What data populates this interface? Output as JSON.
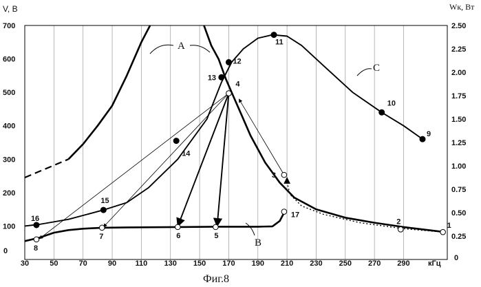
{
  "chart_data": {
    "type": "line",
    "caption": "Фиг.8",
    "left_axis_title": "V, В",
    "right_axis_title": "Wк, Вт",
    "x_unit": "кГц",
    "xlim": [
      30,
      320
    ],
    "ylim_left": [
      0,
      700
    ],
    "ylim_right": [
      0,
      2.5
    ],
    "x_ticks": [
      "30",
      "50",
      "70",
      "90",
      "110",
      "130",
      "150",
      "170",
      "190",
      "210",
      "230",
      "250",
      "270",
      "290"
    ],
    "y_left_ticks": [
      "100",
      "200",
      "300",
      "400",
      "500",
      "600",
      "700"
    ],
    "y_left_zero": "0",
    "y_right_ticks": [
      "0.25",
      "0.50",
      "0.75",
      "1.00",
      "1.25",
      "1.50",
      "1.75",
      "2.00",
      "2.25",
      "2.50"
    ],
    "y_right_zero": "0",
    "grid_x": [
      50,
      70,
      90,
      110,
      130,
      150,
      170,
      190,
      210,
      230,
      250,
      270,
      290
    ],
    "curve_labels": {
      "A": "A",
      "B": "B",
      "C": "C"
    },
    "series": [
      {
        "name": "A",
        "style": "thick",
        "values": [
          [
            60,
            300
          ],
          [
            70,
            345
          ],
          [
            80,
            400
          ],
          [
            90,
            460
          ],
          [
            100,
            550
          ],
          [
            110,
            650
          ],
          [
            116,
            700
          ]
        ],
        "dashed_extension": [
          [
            30,
            245
          ],
          [
            60,
            300
          ]
        ]
      },
      {
        "name": "A",
        "style": "thick",
        "values": [
          [
            153,
            700
          ],
          [
            158,
            640
          ],
          [
            163,
            600
          ],
          [
            168,
            540
          ],
          [
            172,
            500
          ],
          [
            178,
            440
          ],
          [
            185,
            370
          ],
          [
            195,
            290
          ],
          [
            205,
            230
          ],
          [
            215,
            185
          ],
          [
            230,
            150
          ],
          [
            250,
            125
          ],
          [
            270,
            110
          ],
          [
            290,
            97
          ],
          [
            318,
            82
          ]
        ]
      },
      {
        "name": "B",
        "style": "thick",
        "values": [
          [
            30,
            55
          ],
          [
            40,
            65
          ],
          [
            50,
            80
          ],
          [
            60,
            88
          ],
          [
            70,
            92
          ],
          [
            83,
            95
          ],
          [
            100,
            96
          ],
          [
            135,
            97
          ],
          [
            160,
            98
          ],
          [
            190,
            98
          ],
          [
            200,
            99
          ],
          [
            205,
            115
          ],
          [
            208,
            140
          ]
        ]
      },
      {
        "name": "C",
        "style": "medium",
        "values": [
          [
            30,
            100
          ],
          [
            40,
            105
          ],
          [
            60,
            120
          ],
          [
            84,
            148
          ],
          [
            100,
            170
          ],
          [
            115,
            215
          ],
          [
            135,
            300
          ],
          [
            155,
            420
          ],
          [
            165,
            530
          ],
          [
            172,
            590
          ],
          [
            180,
            630
          ],
          [
            190,
            662
          ],
          [
            200,
            672
          ],
          [
            210,
            668
          ],
          [
            220,
            640
          ],
          [
            235,
            580
          ],
          [
            255,
            500
          ],
          [
            275,
            440
          ],
          [
            290,
            400
          ],
          [
            303,
            360
          ]
        ]
      }
    ],
    "points": [
      {
        "label": "1",
        "x": 317,
        "y": 82,
        "filled": false
      },
      {
        "label": "2",
        "x": 288,
        "y": 90,
        "filled": false
      },
      {
        "label": "3",
        "x": 208,
        "y": 253,
        "filled": false
      },
      {
        "label": "4",
        "x": 170,
        "y": 497,
        "filled": false
      },
      {
        "label": "5",
        "x": 161,
        "y": 97,
        "filled": false
      },
      {
        "label": "6",
        "x": 135,
        "y": 97,
        "filled": false
      },
      {
        "label": "7",
        "x": 83,
        "y": 95,
        "filled": false
      },
      {
        "label": "8",
        "x": 38,
        "y": 60,
        "filled": false
      },
      {
        "label": "9",
        "x": 303,
        "y": 360,
        "filled": true
      },
      {
        "label": "10",
        "x": 275,
        "y": 440,
        "filled": true
      },
      {
        "label": "11",
        "x": 201,
        "y": 672,
        "filled": true
      },
      {
        "label": "12",
        "x": 170,
        "y": 590,
        "filled": true
      },
      {
        "label": "13",
        "x": 165,
        "y": 545,
        "filled": true
      },
      {
        "label": "14",
        "x": 134,
        "y": 355,
        "filled": true
      },
      {
        "label": "15",
        "x": 84,
        "y": 148,
        "filled": true
      },
      {
        "label": "16",
        "x": 38,
        "y": 103,
        "filled": true
      },
      {
        "label": "17",
        "x": 208,
        "y": 143,
        "filled": false
      }
    ],
    "arrows": [
      {
        "from": [
          170,
          497
        ],
        "to": [
          135,
          99
        ],
        "weight": "thick"
      },
      {
        "from": [
          170,
          497
        ],
        "to": [
          162,
          99
        ],
        "weight": "thick"
      },
      {
        "from": [
          170,
          497
        ],
        "to": [
          84,
          97
        ],
        "weight": "thin"
      },
      {
        "from": [
          170,
          497
        ],
        "to": [
          40,
          62
        ],
        "weight": "thin"
      },
      {
        "from": [
          208,
          253
        ],
        "to": [
          177,
          480
        ],
        "weight": "thin"
      }
    ],
    "dotted_path": [
      [
        317,
        82
      ],
      [
        290,
        92
      ],
      [
        260,
        110
      ],
      [
        235,
        135
      ],
      [
        220,
        160
      ],
      [
        212,
        195
      ],
      [
        210,
        232
      ]
    ],
    "dotted_arrow_to": [
      210,
      245
    ]
  }
}
